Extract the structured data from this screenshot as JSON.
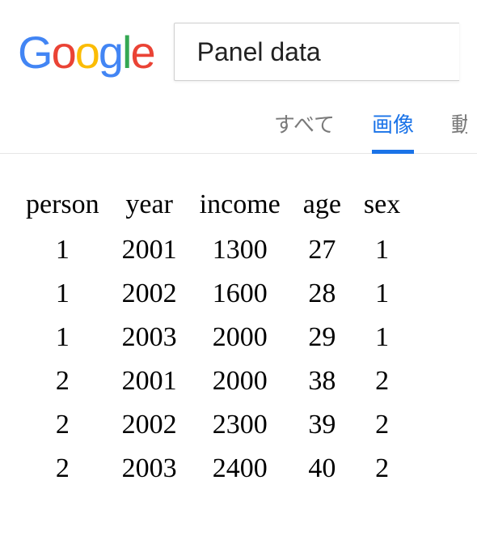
{
  "logo": {
    "g1": "G",
    "o1": "o",
    "o2": "o",
    "g2": "g",
    "l": "l",
    "e": "e"
  },
  "search": {
    "value": "Panel data"
  },
  "tabs": {
    "all": "すべて",
    "images": "画像",
    "partial": "動"
  },
  "table": {
    "columns": [
      "person",
      "year",
      "income",
      "age",
      "sex"
    ],
    "rows": [
      [
        "1",
        "2001",
        "1300",
        "27",
        "1"
      ],
      [
        "1",
        "2002",
        "1600",
        "28",
        "1"
      ],
      [
        "1",
        "2003",
        "2000",
        "29",
        "1"
      ],
      [
        "2",
        "2001",
        "2000",
        "38",
        "2"
      ],
      [
        "2",
        "2002",
        "2300",
        "39",
        "2"
      ],
      [
        "2",
        "2003",
        "2400",
        "40",
        "2"
      ]
    ]
  }
}
